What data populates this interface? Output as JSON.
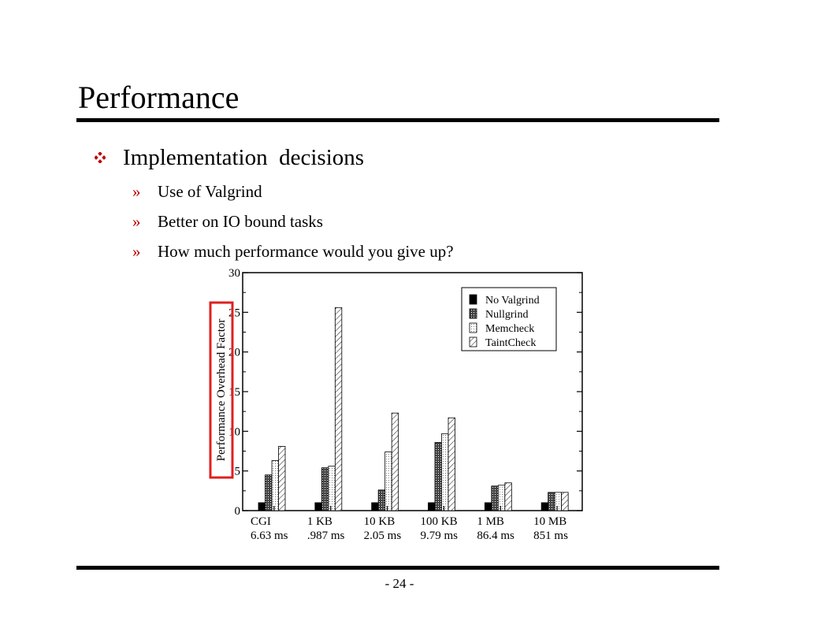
{
  "slide": {
    "title": "Performance",
    "bullet": "Implementation  decisions",
    "sub_bullets": [
      "Use of Valgrind",
      "Better on IO bound tasks",
      "How much performance would you give up?"
    ],
    "sub_marker": "»",
    "page_number": "- 24 -"
  },
  "colors": {
    "accent": "#c00000",
    "highlight_box": "#e02020",
    "bar_fill": "#000000"
  },
  "chart_data": {
    "type": "bar",
    "ylabel": "Performance Overhead Factor",
    "xlabel": "",
    "ylim": [
      0,
      30
    ],
    "yticks": [
      0,
      5,
      10,
      15,
      20,
      25,
      30
    ],
    "categories": [
      "CGI",
      "1 KB",
      "10 KB",
      "100 KB",
      "1 MB",
      "10 MB"
    ],
    "category_sublabels": [
      "6.63 ms",
      ".987 ms",
      "2.05 ms",
      "9.79 ms",
      "86.4 ms",
      "851 ms"
    ],
    "series": [
      {
        "name": "No Valgrind",
        "pattern": "solid",
        "values": [
          1,
          1,
          1,
          1,
          1,
          1
        ]
      },
      {
        "name": "Nullgrind",
        "pattern": "dense",
        "values": [
          4.5,
          5.4,
          2.6,
          8.6,
          3.1,
          2.3
        ]
      },
      {
        "name": "Memcheck",
        "pattern": "dots",
        "values": [
          6.3,
          5.6,
          7.4,
          9.7,
          3.2,
          2.3
        ]
      },
      {
        "name": "TaintCheck",
        "pattern": "diag",
        "values": [
          8.1,
          25.6,
          12.3,
          11.7,
          3.5,
          2.3
        ]
      }
    ],
    "legend_position": "top-right",
    "grid": false,
    "annotation": "ylabel highlighted with red box"
  }
}
